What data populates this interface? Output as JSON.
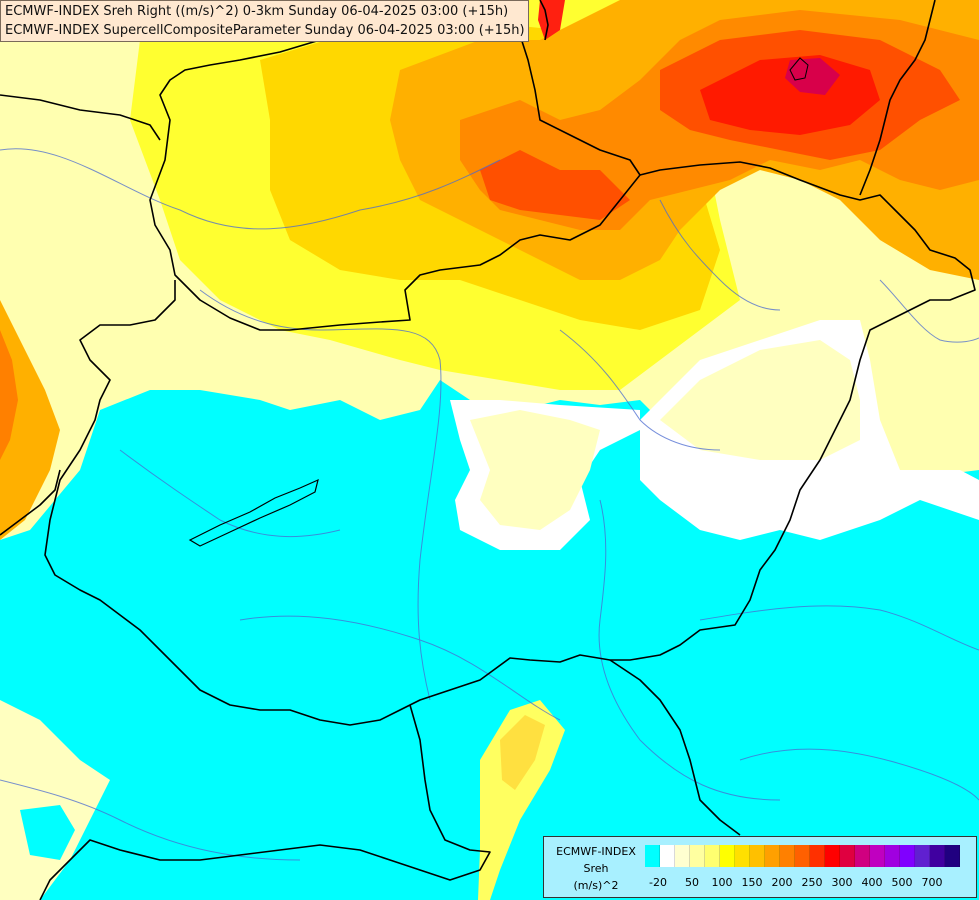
{
  "title": {
    "line1": "ECMWF-INDEX Sreh Right ((m/s)^2) 0-3km Sunday 06-04-2025 03:00 (+15h)",
    "line2": "ECMWF-INDEX SupercellCompositeParameter Sunday 06-04-2025 03:00 (+15h)"
  },
  "legend": {
    "model": "ECMWF-INDEX",
    "param": "Sreh",
    "unit": "(m/s)^2",
    "colors": [
      "#00ffff",
      "#ffffff",
      "#ffffd0",
      "#ffffa0",
      "#ffff70",
      "#ffff00",
      "#ffe000",
      "#ffc000",
      "#ffa000",
      "#ff8000",
      "#ff6000",
      "#ff3000",
      "#ff0000",
      "#e00040",
      "#d00080",
      "#c000c0",
      "#a000e0",
      "#8000ff",
      "#6020d0",
      "#4000a0",
      "#200080"
    ],
    "ticks": [
      "-20",
      "50",
      "100",
      "150",
      "200",
      "250",
      "300",
      "400",
      "500",
      "700"
    ]
  },
  "colors": {
    "bg_cyan": "#00ffff",
    "white": "#ffffff",
    "pale": "#ffffc0",
    "light_yellow": "#ffff90",
    "yellow": "#ffff00",
    "gold": "#ffd700",
    "orange_light": "#ffb000",
    "orange": "#ff8000",
    "red_orange": "#ff4000",
    "red": "#ff0000",
    "magenta": "#d0006a"
  }
}
